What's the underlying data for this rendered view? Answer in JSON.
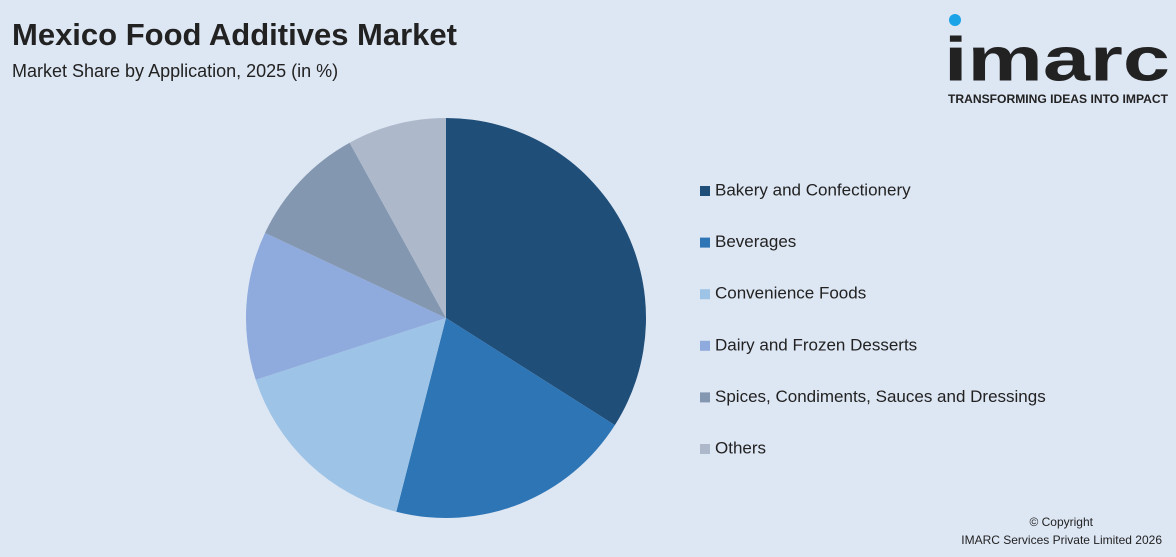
{
  "chart_data": {
    "type": "pie",
    "title": "Mexico Food Additives Market",
    "subtitle": "Market Share by Application, 2025 (in %)",
    "categories": [
      "Bakery and Confectionery",
      "Beverages",
      "Convenience Foods",
      "Dairy and Frozen Desserts",
      "Spices, Condiments, Sauces and Dressings",
      "Others"
    ],
    "values": [
      34,
      20,
      16,
      12,
      10,
      8
    ],
    "colors": [
      "#1f4e79",
      "#2e75b6",
      "#9dc3e6",
      "#8faadc",
      "#8497b0",
      "#adb9ca"
    ]
  },
  "logo": {
    "name": "imarc",
    "tagline": "TRANSFORMING IDEAS INTO IMPACT"
  },
  "footer": {
    "copyright": "© Copyright",
    "company": "IMARC Services Private Limited 2026"
  }
}
